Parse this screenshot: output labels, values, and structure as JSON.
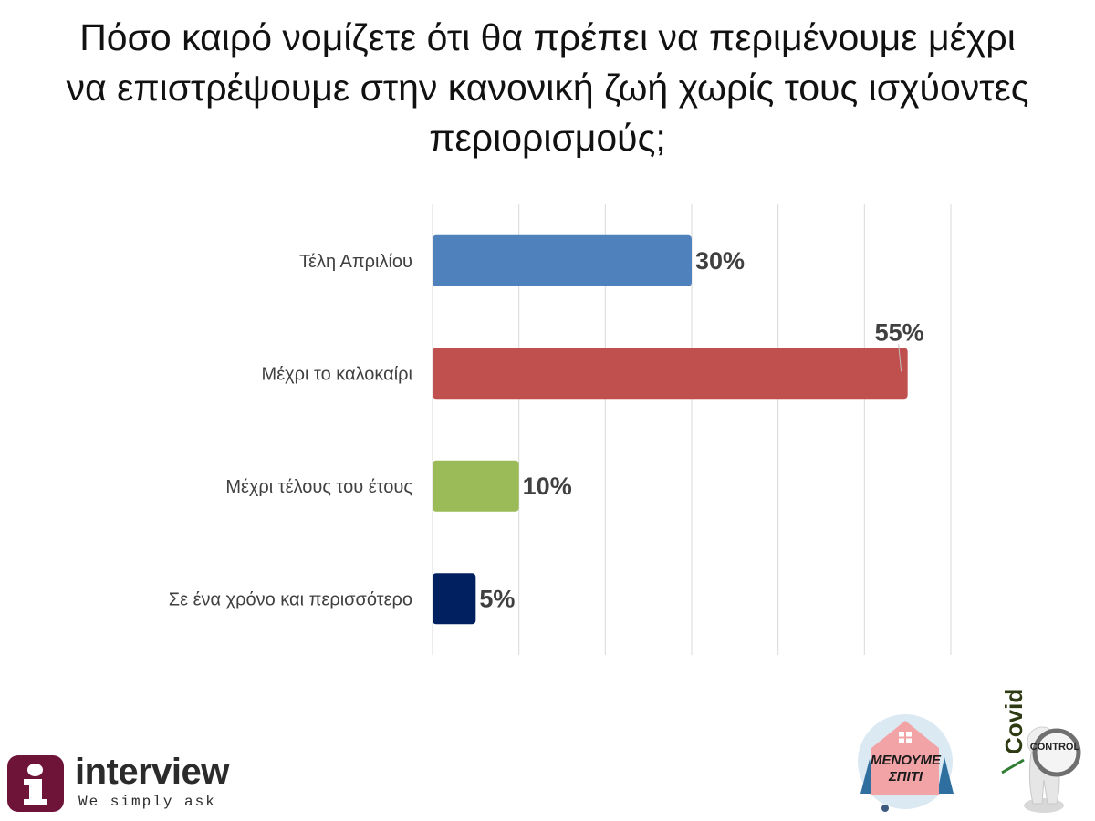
{
  "title": "Πόσο καιρό νομίζετε ότι θα πρέπει να περιμένουμε μέχρι\nνα επιστρέψουμε στην κανονική ζωή χωρίς τους ισχύοντες\nπεριορισμούς;",
  "chart_data": {
    "type": "bar",
    "orientation": "horizontal",
    "title": "Πόσο καιρό νομίζετε ότι θα πρέπει να περιμένουμε μέχρι να επιστρέψουμε στην κανονική ζωή χωρίς τους ισχύοντες περιορισμούς;",
    "categories": [
      "Τέλη Απριλίου",
      "Μέχρι το καλοκαίρι",
      "Μέχρι τέλους του έτους",
      "Σε ένα χρόνο και περισσότερο"
    ],
    "values": [
      30,
      55,
      10,
      5
    ],
    "value_labels": [
      "30%",
      "55%",
      "10%",
      "5%"
    ],
    "colors": [
      "#4f81bd",
      "#c0504d",
      "#9bbb59",
      "#002060"
    ],
    "xlim": [
      0,
      60
    ],
    "grid_step": 10,
    "grid": true,
    "xlabel": "",
    "ylabel": ""
  },
  "logos": {
    "interview_name": "interview",
    "interview_tagline": "We simply ask",
    "home_line1": "ΜΕΝΟΥΜΕ",
    "home_line2": "ΣΠΙΤΙ",
    "covid_word": "Covid",
    "control_word": "CONTROL"
  }
}
